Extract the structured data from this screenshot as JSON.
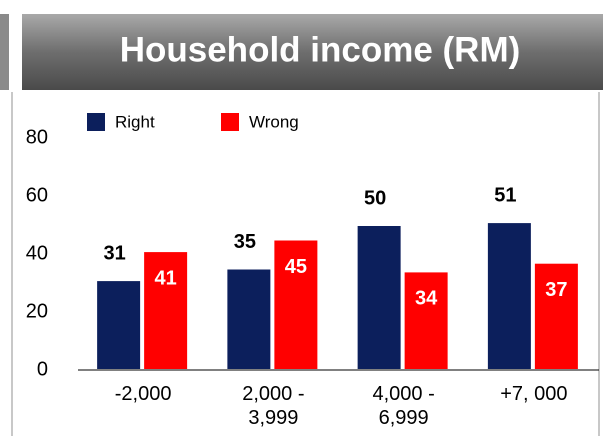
{
  "chart_data": {
    "type": "bar",
    "title": "Household income (RM)",
    "categories": [
      "-2,000",
      "2,000 -\n3,999",
      "4,000 -\n6,999",
      "+7, 000"
    ],
    "series": [
      {
        "name": "Right",
        "color": "#0c1f5c",
        "values": [
          31,
          35,
          50,
          51
        ]
      },
      {
        "name": "Wrong",
        "color": "#ff0000",
        "values": [
          41,
          45,
          34,
          37
        ]
      }
    ],
    "ylim": [
      0,
      80
    ],
    "yticks": [
      0,
      20,
      40,
      60,
      80
    ],
    "grid": false,
    "legend": "top"
  }
}
